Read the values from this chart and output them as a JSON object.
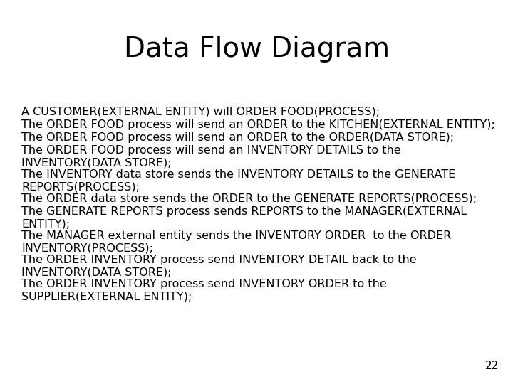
{
  "title": "Data Flow Diagram",
  "title_fontsize": 28,
  "body_lines": [
    "A CUSTOMER(EXTERNAL ENTITY) will ORDER FOOD(PROCESS);",
    "The ORDER FOOD process will send an ORDER to the KITCHEN(EXTERNAL ENTITY);",
    "The ORDER FOOD process will send an ORDER to the ORDER(DATA STORE);",
    "The ORDER FOOD process will send an INVENTORY DETAILS to the\nINVENTORY(DATA STORE);",
    "The INVENTORY data store sends the INVENTORY DETAILS to the GENERATE\nREPORTS(PROCESS);",
    "The ORDER data store sends the ORDER to the GENERATE REPORTS(PROCESS);",
    "The GENERATE REPORTS process sends REPORTS to the MANAGER(EXTERNAL\nENTITY);",
    "The MANAGER external entity sends the INVENTORY ORDER  to the ORDER\nINVENTORY(PROCESS);",
    "The ORDER INVENTORY process send INVENTORY DETAIL back to the\nINVENTORY(DATA STORE);",
    "The ORDER INVENTORY process send INVENTORY ORDER to the\nSUPPLIER(EXTERNAL ENTITY);"
  ],
  "body_fontsize": 11.5,
  "page_number": "22",
  "bg_color": "#ffffff",
  "text_color": "#000000"
}
